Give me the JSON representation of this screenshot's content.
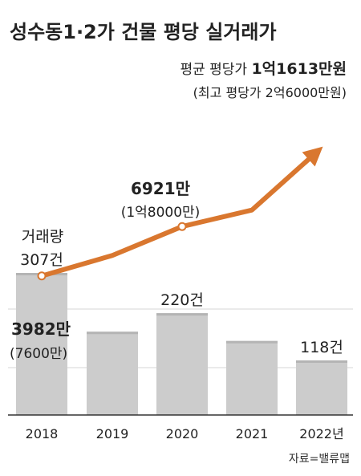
{
  "chart_data": {
    "type": "bar",
    "title": "성수동1·2가 건물 평당 실거래가",
    "source": "자료=밸류맵",
    "categories": [
      "2018",
      "2019",
      "2020",
      "2021",
      "2022년"
    ],
    "volume_header": "거래량",
    "series": [
      {
        "type": "bar",
        "values": [
          307,
          180,
          220,
          160,
          118
        ],
        "labels": [
          "307건",
          "",
          "220건",
          "",
          "118건"
        ]
      },
      {
        "type": "line",
        "values": [
          3982,
          5200,
          6921,
          7900,
          11613
        ],
        "labels": [
          {
            "main": "3982만",
            "sub": "(7600만)"
          },
          {
            "main": "",
            "sub": ""
          },
          {
            "main": "6921만",
            "sub": "(1억8000만)"
          },
          {
            "main": "",
            "sub": ""
          },
          {
            "main": "1억1613만원",
            "sub": "(최고 평당가  2억6000만원)",
            "prefix": "평균 평당가 "
          }
        ]
      }
    ],
    "bar_ylim": [
      0,
      400
    ],
    "line_ylim": [
      0,
      13500
    ],
    "colors": {
      "bar": "#cccccc",
      "bar_top": "#b4b4b4",
      "line": "#d9772f",
      "grid": "#d4d4d4",
      "axis": "#333333",
      "text": "#222222"
    }
  }
}
